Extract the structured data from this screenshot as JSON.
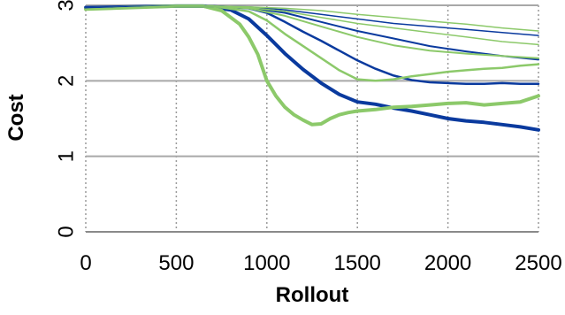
{
  "chart_data": {
    "type": "line",
    "title": "",
    "xlabel": "Rollout",
    "ylabel": "Cost",
    "xlim": [
      0,
      2500
    ],
    "ylim": [
      0,
      3
    ],
    "xticks": [
      0,
      500,
      1000,
      1500,
      2000,
      2500
    ],
    "yticks": [
      0,
      1,
      2,
      3
    ],
    "grid": {
      "horizontal": "solid",
      "vertical": "dotted"
    },
    "legend": "none",
    "series": [
      {
        "color": "#0a3a9e",
        "width": 4,
        "x": [
          0,
          500,
          650,
          800,
          900,
          1000,
          1100,
          1200,
          1300,
          1400,
          1500,
          1600,
          1700,
          1800,
          1900,
          2000,
          2100,
          2200,
          2300,
          2400,
          2500
        ],
        "y": [
          2.97,
          2.99,
          2.99,
          2.94,
          2.82,
          2.6,
          2.36,
          2.15,
          1.97,
          1.82,
          1.72,
          1.69,
          1.64,
          1.6,
          1.55,
          1.5,
          1.47,
          1.45,
          1.42,
          1.39,
          1.35
        ]
      },
      {
        "color": "#8cc96a",
        "width": 4,
        "x": [
          0,
          500,
          650,
          750,
          850,
          900,
          950,
          1000,
          1050,
          1100,
          1150,
          1200,
          1250,
          1300,
          1350,
          1400,
          1450,
          1500,
          1600,
          1700,
          1800,
          1900,
          2000,
          2100,
          2200,
          2300,
          2400,
          2500
        ],
        "y": [
          2.95,
          2.99,
          2.99,
          2.93,
          2.75,
          2.58,
          2.35,
          2.0,
          1.8,
          1.65,
          1.55,
          1.48,
          1.42,
          1.43,
          1.5,
          1.55,
          1.58,
          1.6,
          1.62,
          1.65,
          1.66,
          1.68,
          1.7,
          1.71,
          1.68,
          1.7,
          1.72,
          1.8
        ]
      },
      {
        "color": "#0a3a9e",
        "width": 2.5,
        "x": [
          0,
          500,
          700,
          900,
          1000,
          1100,
          1200,
          1300,
          1400,
          1500,
          1600,
          1700,
          1800,
          1900,
          2000,
          2100,
          2200,
          2300,
          2400,
          2500
        ],
        "y": [
          2.96,
          2.99,
          2.99,
          2.96,
          2.9,
          2.78,
          2.65,
          2.53,
          2.4,
          2.27,
          2.16,
          2.07,
          2.01,
          1.98,
          1.97,
          1.96,
          1.96,
          1.97,
          1.96,
          1.96
        ]
      },
      {
        "color": "#8cc96a",
        "width": 2.5,
        "x": [
          0,
          500,
          700,
          900,
          1000,
          1100,
          1200,
          1300,
          1400,
          1500,
          1600,
          1700,
          1800,
          1900,
          2000,
          2100,
          2200,
          2300,
          2400,
          2500
        ],
        "y": [
          2.95,
          2.99,
          2.99,
          2.92,
          2.8,
          2.62,
          2.46,
          2.3,
          2.14,
          2.02,
          2.0,
          2.02,
          2.06,
          2.09,
          2.12,
          2.14,
          2.16,
          2.17,
          2.2,
          2.22
        ]
      },
      {
        "color": "#0a3a9e",
        "width": 2,
        "x": [
          0,
          500,
          700,
          900,
          1100,
          1300,
          1500,
          1700,
          1900,
          2100,
          2300,
          2500
        ],
        "y": [
          2.96,
          2.99,
          2.99,
          2.97,
          2.9,
          2.78,
          2.66,
          2.56,
          2.46,
          2.39,
          2.33,
          2.28
        ]
      },
      {
        "color": "#8cc96a",
        "width": 2,
        "x": [
          0,
          500,
          700,
          900,
          1100,
          1300,
          1500,
          1700,
          1900,
          2100,
          2300,
          2500
        ],
        "y": [
          2.95,
          2.99,
          2.99,
          2.96,
          2.86,
          2.72,
          2.58,
          2.47,
          2.4,
          2.36,
          2.33,
          2.3
        ]
      },
      {
        "color": "#0a3a9e",
        "width": 1.5,
        "x": [
          0,
          500,
          700,
          900,
          1100,
          1300,
          1500,
          1700,
          1900,
          2100,
          2300,
          2500
        ],
        "y": [
          2.96,
          2.99,
          2.99,
          2.98,
          2.94,
          2.88,
          2.82,
          2.76,
          2.72,
          2.68,
          2.64,
          2.6
        ]
      },
      {
        "color": "#8cc96a",
        "width": 1.5,
        "x": [
          0,
          500,
          700,
          900,
          1100,
          1300,
          1500,
          1700,
          1900,
          2100,
          2300,
          2500
        ],
        "y": [
          2.95,
          2.99,
          2.99,
          2.97,
          2.92,
          2.84,
          2.76,
          2.7,
          2.64,
          2.58,
          2.52,
          2.48
        ]
      },
      {
        "color": "#8cc96a",
        "width": 1.5,
        "x": [
          0,
          500,
          700,
          900,
          1100,
          1300,
          1500,
          1700,
          1900,
          2100,
          2300,
          2500
        ],
        "y": [
          2.95,
          2.99,
          2.99,
          2.98,
          2.96,
          2.93,
          2.88,
          2.84,
          2.79,
          2.75,
          2.7,
          2.66
        ]
      }
    ]
  }
}
